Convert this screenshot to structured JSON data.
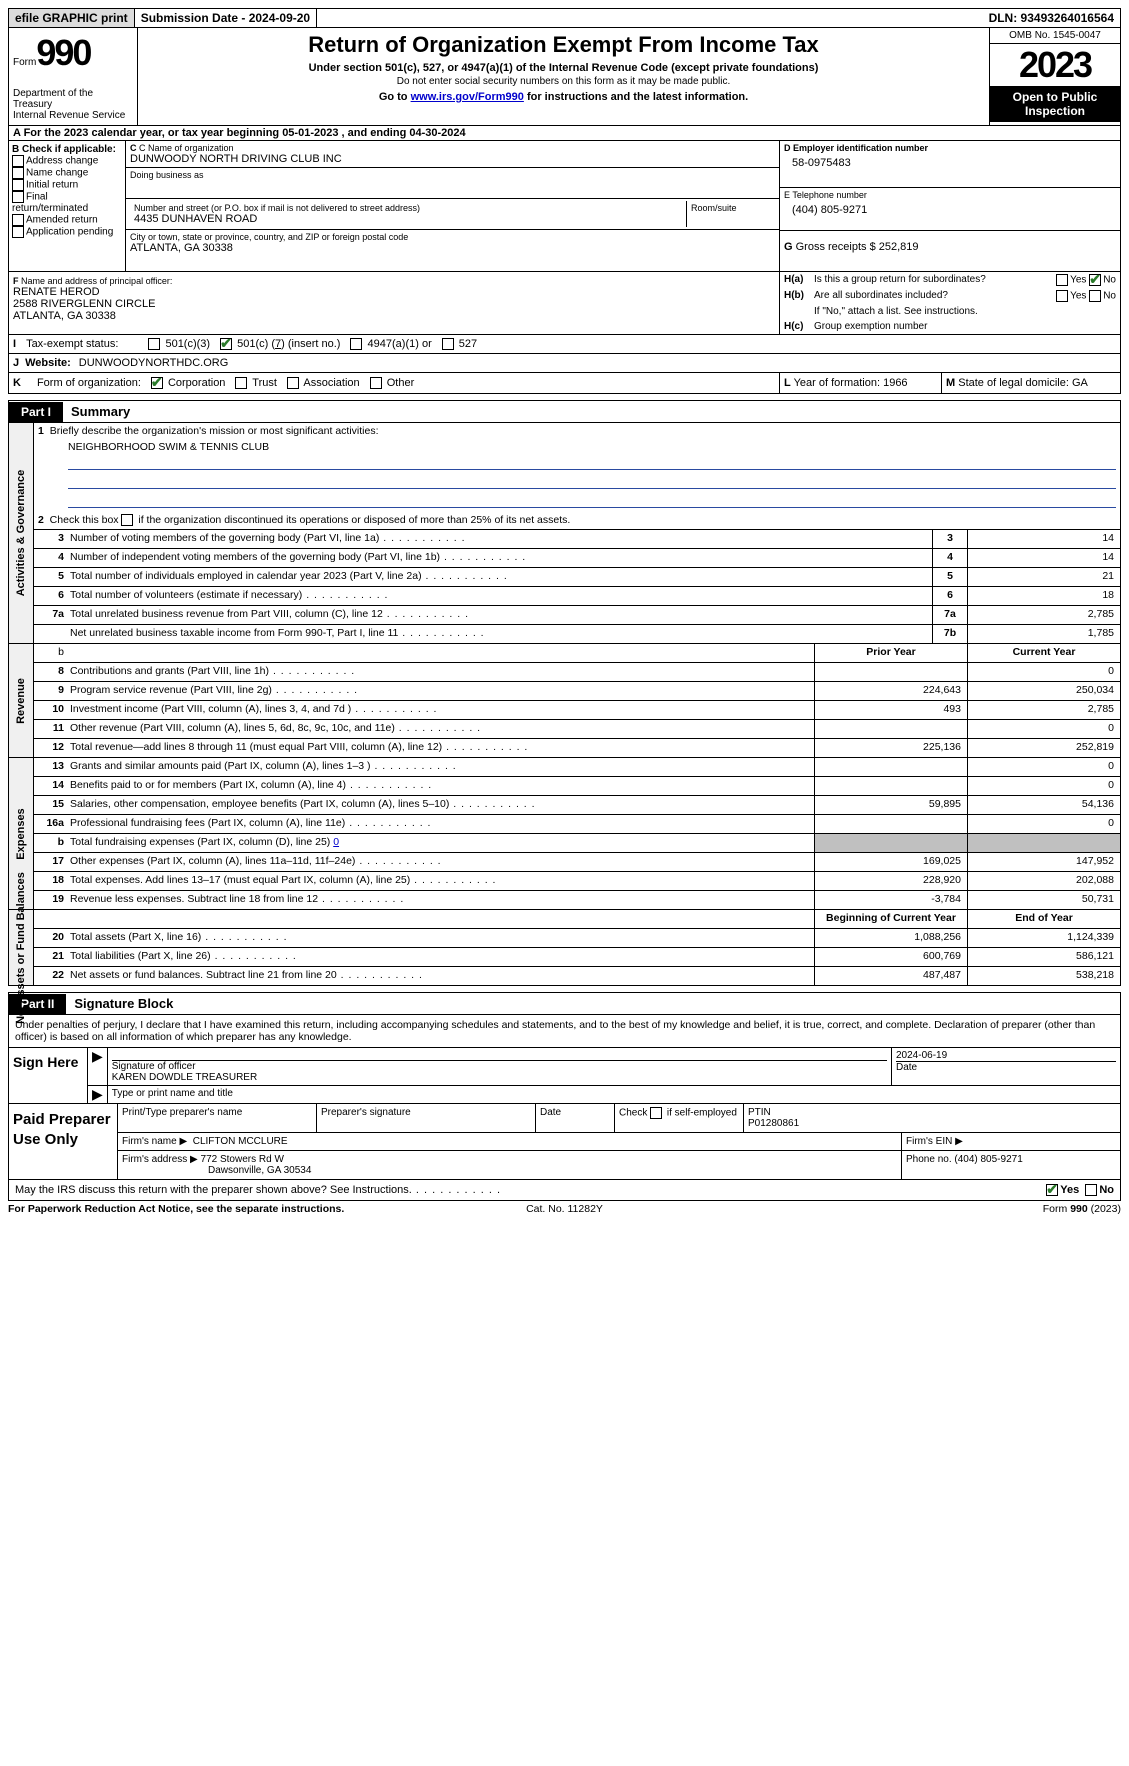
{
  "top": {
    "efile": "efile GRAPHIC print",
    "submission_label": "Submission Date - 2024-09-20",
    "dln": "DLN: 93493264016564"
  },
  "header": {
    "form_label": "Form",
    "form_number": "990",
    "dept": "Department of the Treasury\nInternal Revenue Service",
    "title": "Return of Organization Exempt From Income Tax",
    "subtitle": "Under section 501(c), 527, or 4947(a)(1) of the Internal Revenue Code (except private foundations)",
    "note": "Do not enter social security numbers on this form as it may be made public.",
    "goto_prefix": "Go to ",
    "goto_link": "www.irs.gov/Form990",
    "goto_suffix": " for instructions and the latest information.",
    "omb": "OMB No. 1545-0047",
    "year": "2023",
    "open": "Open to Public Inspection"
  },
  "row_a": "A For the 2023 calendar year, or tax year beginning 05-01-2023    , and ending 04-30-2024",
  "col_b": {
    "heading": "B Check if applicable:",
    "items": [
      "Address change",
      "Name change",
      "Initial return",
      "Final return/terminated",
      "Amended return",
      "Application pending"
    ]
  },
  "col_c": {
    "name_label": "C Name of organization",
    "name": "DUNWOODY NORTH DRIVING CLUB INC",
    "dba_label": "Doing business as",
    "dba": "",
    "street_label": "Number and street (or P.O. box if mail is not delivered to street address)",
    "street": "4435 DUNHAVEN ROAD",
    "room_label": "Room/suite",
    "room": "",
    "city_label": "City or town, state or province, country, and ZIP or foreign postal code",
    "city": "ATLANTA, GA   30338"
  },
  "col_d": {
    "ein_label": "D Employer identification number",
    "ein": "58-0975483",
    "phone_label": "E Telephone number",
    "phone": "(404) 805-9271",
    "receipts_label": "G Gross receipts $ ",
    "receipts": "252,819"
  },
  "officer": {
    "label": "F  Name and address of principal officer:",
    "name": "RENATE HEROD",
    "line2": "2588 RIVERGLENN CIRCLE",
    "line3": "ATLANTA, GA  30338"
  },
  "group": {
    "ha_label": "H(a)",
    "ha_text": "Is this a group return for subordinates?",
    "hb_label": "H(b)",
    "hb_text": "Are all subordinates included?",
    "hb_note": "If \"No,\" attach a list. See instructions.",
    "hc_label": "H(c)",
    "hc_text": "Group exemption number ",
    "yes": "Yes",
    "no": "No"
  },
  "status": {
    "lead": "I",
    "label": "Tax-exempt status:",
    "o1": "501(c)(3)",
    "o2_pre": "501(c) (",
    "o2_num": "7",
    "o2_post": ") (insert no.)",
    "o3": "4947(a)(1) or",
    "o4": "527"
  },
  "website": {
    "lead": "J",
    "label": "Website: ",
    "value": "DUNWOODYNORTHDC.ORG"
  },
  "orgform": {
    "lead": "K",
    "label": "Form of organization:",
    "o1": "Corporation",
    "o2": "Trust",
    "o3": "Association",
    "o4": "Other",
    "yof_label": "L Year of formation: ",
    "yof": "1966",
    "dom_label": "M State of legal domicile: ",
    "dom": "GA"
  },
  "part1": {
    "tag": "Part I",
    "title": "Summary",
    "q1": "Briefly describe the organization's mission or most significant activities:",
    "mission": "NEIGHBORHOOD SWIM & TENNIS CLUB",
    "q2": "Check this box          if the organization discontinued its operations or disposed of more than 25% of its net assets.",
    "governance": "Activities & Governance",
    "revenue": "Revenue",
    "expenses": "Expenses",
    "netassets": "Net Assets or Fund Balances",
    "prior": "Prior Year",
    "current": "Current Year",
    "begin": "Beginning of Current Year",
    "end": "End of Year",
    "rows_gov": [
      {
        "n": "3",
        "t": "Number of voting members of the governing body (Part VI, line 1a)",
        "c": "3",
        "v": "14"
      },
      {
        "n": "4",
        "t": "Number of independent voting members of the governing body (Part VI, line 1b)",
        "c": "4",
        "v": "14"
      },
      {
        "n": "5",
        "t": "Total number of individuals employed in calendar year 2023 (Part V, line 2a)",
        "c": "5",
        "v": "21"
      },
      {
        "n": "6",
        "t": "Total number of volunteers (estimate if necessary)",
        "c": "6",
        "v": "18"
      },
      {
        "n": "7a",
        "t": "Total unrelated business revenue from Part VIII, column (C), line 12",
        "c": "7a",
        "v": "2,785"
      },
      {
        "n": "",
        "t": "Net unrelated business taxable income from Form 990-T, Part I, line 11",
        "c": "7b",
        "v": "1,785"
      }
    ],
    "rows_rev": [
      {
        "n": "8",
        "t": "Contributions and grants (Part VIII, line 1h)",
        "p": "",
        "v": "0"
      },
      {
        "n": "9",
        "t": "Program service revenue (Part VIII, line 2g)",
        "p": "224,643",
        "v": "250,034"
      },
      {
        "n": "10",
        "t": "Investment income (Part VIII, column (A), lines 3, 4, and 7d )",
        "p": "493",
        "v": "2,785"
      },
      {
        "n": "11",
        "t": "Other revenue (Part VIII, column (A), lines 5, 6d, 8c, 9c, 10c, and 11e)",
        "p": "",
        "v": "0"
      },
      {
        "n": "12",
        "t": "Total revenue—add lines 8 through 11 (must equal Part VIII, column (A), line 12)",
        "p": "225,136",
        "v": "252,819"
      }
    ],
    "rows_exp": [
      {
        "n": "13",
        "t": "Grants and similar amounts paid (Part IX, column (A), lines 1–3 )",
        "p": "",
        "v": "0"
      },
      {
        "n": "14",
        "t": "Benefits paid to or for members (Part IX, column (A), line 4)",
        "p": "",
        "v": "0"
      },
      {
        "n": "15",
        "t": "Salaries, other compensation, employee benefits (Part IX, column (A), lines 5–10)",
        "p": "59,895",
        "v": "54,136"
      },
      {
        "n": "16a",
        "t": "Professional fundraising fees (Part IX, column (A), line 11e)",
        "p": "",
        "v": "0"
      },
      {
        "n": "b",
        "t": "Total fundraising expenses (Part IX, column (D), line 25) ",
        "link": "0",
        "grey": true
      },
      {
        "n": "17",
        "t": "Other expenses (Part IX, column (A), lines 11a–11d, 11f–24e)",
        "p": "169,025",
        "v": "147,952"
      },
      {
        "n": "18",
        "t": "Total expenses. Add lines 13–17 (must equal Part IX, column (A), line 25)",
        "p": "228,920",
        "v": "202,088"
      },
      {
        "n": "19",
        "t": "Revenue less expenses. Subtract line 18 from line 12",
        "p": "-3,784",
        "v": "50,731"
      }
    ],
    "rows_net": [
      {
        "n": "20",
        "t": "Total assets (Part X, line 16)",
        "p": "1,088,256",
        "v": "1,124,339"
      },
      {
        "n": "21",
        "t": "Total liabilities (Part X, line 26)",
        "p": "600,769",
        "v": "586,121"
      },
      {
        "n": "22",
        "t": "Net assets or fund balances. Subtract line 21 from line 20",
        "p": "487,487",
        "v": "538,218"
      }
    ]
  },
  "part2": {
    "tag": "Part II",
    "title": "Signature Block",
    "intro": "Under penalties of perjury, I declare that I have examined this return, including accompanying schedules and statements, and to the best of my knowledge and belief, it is true, correct, and complete. Declaration of preparer (other than officer) is based on all information of which preparer has any knowledge.",
    "sign_here": "Sign Here",
    "sig_officer_lbl": "Signature of officer",
    "date_lbl": "Date",
    "officer_val": "KAREN DOWDLE  TREASURER",
    "date_val": "2024-06-19",
    "type_lbl": "Type or print name and title",
    "paid": "Paid Preparer Use Only",
    "prep_name_lbl": "Print/Type preparer's name",
    "prep_sig_lbl": "Preparer's signature",
    "prep_date_lbl": "Date",
    "self_emp": "Check           if self-employed",
    "ptin_lbl": "PTIN",
    "ptin": "P01280861",
    "firm_name_lbl": "Firm's name   ",
    "firm_name": "CLIFTON MCCLURE",
    "firm_ein_lbl": "Firm's EIN  ",
    "firm_addr_lbl": "Firm's address ",
    "firm_addr1": "772 Stowers Rd W",
    "firm_addr2": "Dawsonville, GA   30534",
    "firm_phone_lbl": "Phone no. ",
    "firm_phone": "(404) 805-9271",
    "discuss": "May the IRS discuss this return with the preparer shown above? See Instructions.",
    "yes": "Yes",
    "no": "No"
  },
  "footer": {
    "left": "For Paperwork Reduction Act Notice, see the separate instructions.",
    "mid": "Cat. No. 11282Y",
    "right_pre": "Form ",
    "right_form": "990",
    "right_post": " (2023)"
  }
}
